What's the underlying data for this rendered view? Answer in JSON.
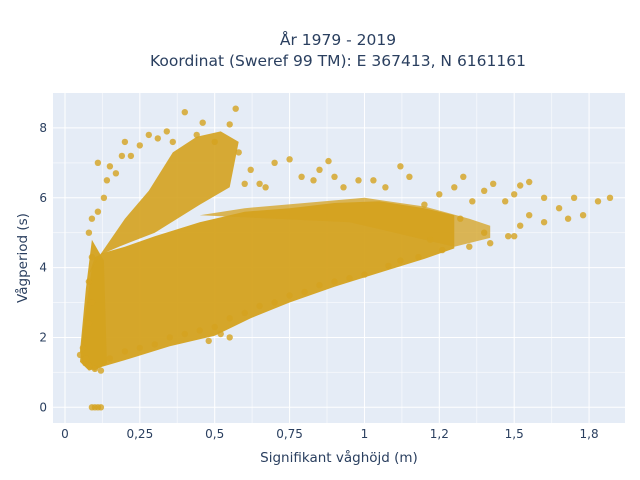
{
  "chart_data": {
    "type": "scatter",
    "title_lines": [
      "År 1979 - 2019",
      "Koordinat (Sweref 99 TM): E 367413, N 6161161"
    ],
    "xlabel": "Signifikant våghöjd (m)",
    "ylabel": "Vågperiod (s)",
    "xlim": [
      -0.04,
      1.87
    ],
    "ylim": [
      -0.45,
      9.0
    ],
    "x_ticks": [
      0,
      0.25,
      0.5,
      0.75,
      1,
      1.25,
      1.5,
      1.75
    ],
    "x_tick_labels": [
      "0",
      "0,25",
      "0,5",
      "0,75",
      "1",
      "1,2",
      "1,5",
      "1,8"
    ],
    "y_ticks": [
      0,
      2,
      4,
      6,
      8
    ],
    "y_tick_labels": [
      "0",
      "2",
      "4",
      "6",
      "8"
    ],
    "marker_color": "#d4a21f",
    "plot_background": "#e5ecf6",
    "grid": true,
    "points": [
      [
        0.09,
        0.0
      ],
      [
        0.1,
        0.0
      ],
      [
        0.11,
        0.0
      ],
      [
        0.12,
        0.0
      ],
      [
        0.05,
        1.5
      ],
      [
        0.06,
        1.7
      ],
      [
        0.07,
        1.4
      ],
      [
        0.08,
        1.2
      ],
      [
        0.1,
        1.1
      ],
      [
        0.12,
        1.05
      ],
      [
        0.08,
        2.4
      ],
      [
        0.09,
        3.0
      ],
      [
        0.08,
        3.6
      ],
      [
        0.09,
        4.3
      ],
      [
        0.08,
        5.0
      ],
      [
        0.09,
        5.4
      ],
      [
        0.11,
        5.6
      ],
      [
        0.13,
        6.0
      ],
      [
        0.14,
        6.5
      ],
      [
        0.15,
        6.9
      ],
      [
        0.11,
        7.0
      ],
      [
        0.17,
        6.7
      ],
      [
        0.19,
        7.2
      ],
      [
        0.2,
        7.6
      ],
      [
        0.22,
        7.2
      ],
      [
        0.25,
        7.5
      ],
      [
        0.28,
        7.8
      ],
      [
        0.31,
        7.7
      ],
      [
        0.34,
        7.9
      ],
      [
        0.36,
        7.6
      ],
      [
        0.4,
        8.45
      ],
      [
        0.44,
        7.8
      ],
      [
        0.46,
        8.15
      ],
      [
        0.5,
        7.6
      ],
      [
        0.55,
        8.1
      ],
      [
        0.57,
        8.55
      ],
      [
        0.58,
        7.3
      ],
      [
        0.6,
        6.4
      ],
      [
        0.62,
        6.8
      ],
      [
        0.65,
        6.4
      ],
      [
        0.67,
        6.3
      ],
      [
        0.7,
        7.0
      ],
      [
        0.75,
        7.1
      ],
      [
        0.79,
        6.6
      ],
      [
        0.83,
        6.5
      ],
      [
        0.85,
        6.8
      ],
      [
        0.88,
        7.05
      ],
      [
        0.9,
        6.6
      ],
      [
        0.93,
        6.3
      ],
      [
        0.98,
        6.5
      ],
      [
        1.03,
        6.5
      ],
      [
        1.07,
        6.3
      ],
      [
        1.12,
        6.9
      ],
      [
        1.15,
        6.6
      ],
      [
        1.2,
        5.8
      ],
      [
        1.25,
        6.1
      ],
      [
        1.3,
        6.3
      ],
      [
        1.33,
        6.6
      ],
      [
        1.36,
        5.9
      ],
      [
        1.4,
        6.2
      ],
      [
        1.43,
        6.4
      ],
      [
        1.47,
        5.9
      ],
      [
        1.5,
        6.1
      ],
      [
        1.52,
        6.35
      ],
      [
        1.55,
        6.45
      ],
      [
        1.6,
        6.0
      ],
      [
        1.65,
        5.7
      ],
      [
        1.7,
        6.0
      ],
      [
        1.73,
        5.5
      ],
      [
        1.78,
        5.9
      ],
      [
        1.82,
        6.0
      ],
      [
        1.68,
        5.4
      ],
      [
        1.6,
        5.3
      ],
      [
        1.55,
        5.5
      ],
      [
        1.52,
        5.2
      ],
      [
        1.48,
        4.9
      ],
      [
        1.5,
        4.9
      ],
      [
        1.42,
        4.7
      ],
      [
        1.4,
        5.0
      ],
      [
        1.35,
        4.6
      ],
      [
        1.32,
        5.4
      ],
      [
        1.26,
        4.5
      ],
      [
        1.22,
        4.8
      ],
      [
        1.18,
        4.3
      ],
      [
        1.12,
        4.2
      ],
      [
        1.08,
        4.05
      ],
      [
        1.0,
        3.8
      ],
      [
        0.95,
        3.7
      ],
      [
        0.9,
        3.6
      ],
      [
        0.85,
        3.5
      ],
      [
        0.8,
        3.3
      ],
      [
        0.75,
        3.2
      ],
      [
        0.7,
        3.0
      ],
      [
        0.65,
        2.9
      ],
      [
        0.6,
        2.7
      ],
      [
        0.55,
        2.55
      ],
      [
        0.5,
        2.3
      ],
      [
        0.45,
        2.2
      ],
      [
        0.4,
        2.1
      ],
      [
        0.35,
        2.0
      ],
      [
        0.3,
        1.8
      ],
      [
        0.25,
        1.7
      ],
      [
        0.2,
        1.6
      ],
      [
        0.15,
        1.4
      ],
      [
        0.52,
        2.1
      ],
      [
        0.55,
        2.0
      ],
      [
        0.48,
        1.9
      ]
    ]
  }
}
